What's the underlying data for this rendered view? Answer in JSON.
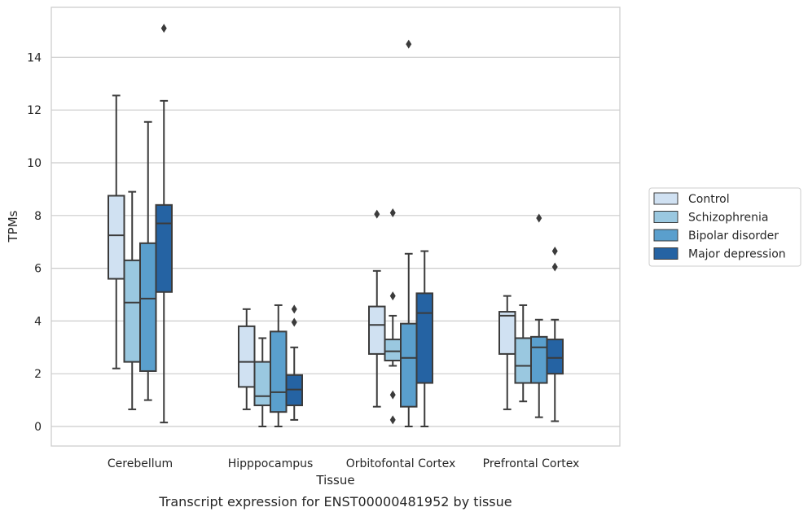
{
  "caption": "Transcript expression for ENST00000481952 by tissue",
  "chart_data": {
    "type": "box",
    "xlabel": "Tissue",
    "ylabel": "TPMs",
    "ylim": [
      -0.7,
      15.8
    ],
    "yticks": [
      0,
      2,
      4,
      6,
      8,
      10,
      12,
      14
    ],
    "grid": "horizontal",
    "legend_position": "right",
    "categories": [
      "Cerebellum",
      "Hipppocampus",
      "Orbitofontal Cortex",
      "Prefrontal Cortex"
    ],
    "series": [
      {
        "name": "Control",
        "color": "#d0e1f2",
        "boxes": [
          {
            "whislo": 2.2,
            "q1": 5.6,
            "med": 7.25,
            "q3": 8.75,
            "whishi": 12.55,
            "fliers": []
          },
          {
            "whislo": 0.65,
            "q1": 1.5,
            "med": 2.45,
            "q3": 3.8,
            "whishi": 4.45,
            "fliers": []
          },
          {
            "whislo": 0.75,
            "q1": 2.75,
            "med": 3.85,
            "q3": 4.55,
            "whishi": 5.9,
            "fliers": [
              8.05
            ]
          },
          {
            "whislo": 0.65,
            "q1": 2.75,
            "med": 4.2,
            "q3": 4.35,
            "whishi": 4.95,
            "fliers": []
          }
        ]
      },
      {
        "name": "Schizophrenia",
        "color": "#9ac8e0",
        "boxes": [
          {
            "whislo": 0.65,
            "q1": 2.45,
            "med": 4.7,
            "q3": 6.3,
            "whishi": 8.9,
            "fliers": []
          },
          {
            "whislo": 0.0,
            "q1": 0.8,
            "med": 1.15,
            "q3": 2.45,
            "whishi": 3.35,
            "fliers": []
          },
          {
            "whislo": 2.3,
            "q1": 2.5,
            "med": 2.85,
            "q3": 3.3,
            "whishi": 4.2,
            "fliers": [
              8.1,
              4.95,
              1.2,
              0.25
            ]
          },
          {
            "whislo": 0.95,
            "q1": 1.65,
            "med": 2.3,
            "q3": 3.35,
            "whishi": 4.6,
            "fliers": []
          }
        ]
      },
      {
        "name": "Bipolar disorder",
        "color": "#5a9fcd",
        "boxes": [
          {
            "whislo": 1.0,
            "q1": 2.1,
            "med": 4.85,
            "q3": 6.95,
            "whishi": 11.55,
            "fliers": []
          },
          {
            "whislo": 0.0,
            "q1": 0.55,
            "med": 1.3,
            "q3": 3.6,
            "whishi": 4.6,
            "fliers": []
          },
          {
            "whislo": 0.0,
            "q1": 0.75,
            "med": 2.6,
            "q3": 3.9,
            "whishi": 6.55,
            "fliers": [
              14.5
            ]
          },
          {
            "whislo": 0.35,
            "q1": 1.65,
            "med": 3.0,
            "q3": 3.4,
            "whishi": 4.05,
            "fliers": [
              7.9
            ]
          }
        ]
      },
      {
        "name": "Major depression",
        "color": "#2563a3",
        "boxes": [
          {
            "whislo": 0.15,
            "q1": 5.1,
            "med": 7.7,
            "q3": 8.4,
            "whishi": 12.35,
            "fliers": [
              15.1
            ]
          },
          {
            "whislo": 0.25,
            "q1": 0.8,
            "med": 1.4,
            "q3": 1.95,
            "whishi": 3.0,
            "fliers": [
              4.45,
              3.95
            ]
          },
          {
            "whislo": 0.0,
            "q1": 1.65,
            "med": 4.3,
            "q3": 5.05,
            "whishi": 6.65,
            "fliers": []
          },
          {
            "whislo": 0.2,
            "q1": 2.0,
            "med": 2.6,
            "q3": 3.3,
            "whishi": 4.05,
            "fliers": [
              6.65,
              6.05
            ]
          }
        ]
      }
    ]
  }
}
